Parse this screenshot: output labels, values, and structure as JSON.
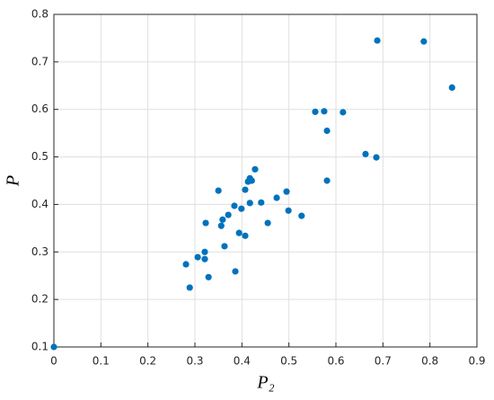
{
  "chart_data": {
    "type": "scatter",
    "x_label": "P₂",
    "y_label": "P",
    "xlim": [
      0,
      0.9
    ],
    "ylim": [
      0.1,
      0.8
    ],
    "xticks": [
      0,
      0.1,
      0.2,
      0.3,
      0.4,
      0.5,
      0.6,
      0.7,
      0.8,
      0.9
    ],
    "yticks": [
      0.1,
      0.2,
      0.3,
      0.4,
      0.5,
      0.6,
      0.7,
      0.8
    ],
    "grid": true,
    "color": "#0072bd",
    "x": [
      0,
      0.281,
      0.289,
      0.306,
      0.321,
      0.321,
      0.323,
      0.329,
      0.35,
      0.356,
      0.359,
      0.363,
      0.371,
      0.384,
      0.386,
      0.394,
      0.399,
      0.407,
      0.407,
      0.413,
      0.417,
      0.417,
      0.421,
      0.428,
      0.441,
      0.455,
      0.474,
      0.495,
      0.499,
      0.527,
      0.556,
      0.575,
      0.581,
      0.581,
      0.615,
      0.663,
      0.686,
      0.688,
      0.787,
      0.847
    ],
    "values": [
      0.1,
      0.274,
      0.225,
      0.289,
      0.285,
      0.3,
      0.361,
      0.247,
      0.429,
      0.355,
      0.368,
      0.312,
      0.378,
      0.397,
      0.259,
      0.34,
      0.391,
      0.334,
      0.431,
      0.448,
      0.403,
      0.455,
      0.45,
      0.474,
      0.404,
      0.361,
      0.414,
      0.427,
      0.387,
      0.376,
      0.595,
      0.596,
      0.555,
      0.45,
      0.594,
      0.506,
      0.499,
      0.745,
      0.743,
      0.646
    ]
  }
}
